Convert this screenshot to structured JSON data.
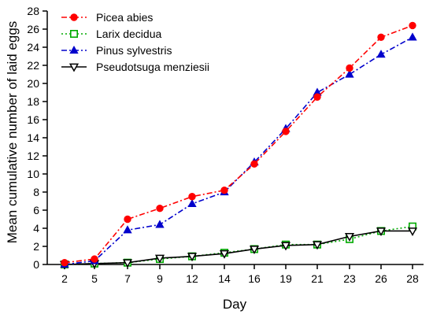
{
  "chart_data": {
    "type": "line",
    "xlabel": "Day",
    "ylabel": "Mean cumulative number of laid eggs",
    "categories": [
      "2",
      "5",
      "7",
      "9",
      "12",
      "14",
      "16",
      "19",
      "21",
      "23",
      "26",
      "28"
    ],
    "ylim": [
      0,
      28
    ],
    "yticks": [
      0,
      2,
      4,
      6,
      8,
      10,
      12,
      14,
      16,
      18,
      20,
      22,
      24,
      26,
      28
    ],
    "legend_position": "top-left",
    "grid": false,
    "series": [
      {
        "name": "Picea abies",
        "color": "#ff0000",
        "dash": "dash-dot",
        "marker": "filled-circle",
        "values": [
          0.2,
          0.6,
          5.0,
          6.2,
          7.5,
          8.2,
          11.1,
          14.7,
          18.5,
          21.7,
          25.1,
          26.4
        ]
      },
      {
        "name": "Larix decidua",
        "color": "#00aa00",
        "dash": "dotted",
        "marker": "open-square",
        "values": [
          0.0,
          0.1,
          0.2,
          0.6,
          0.9,
          1.3,
          1.7,
          2.2,
          2.2,
          2.8,
          3.7,
          4.2
        ]
      },
      {
        "name": "Pinus sylvestris",
        "color": "#0000cc",
        "dash": "dash-dot",
        "marker": "filled-triangle-up",
        "values": [
          0.0,
          0.4,
          3.8,
          4.4,
          6.7,
          8.0,
          11.3,
          15.0,
          19.0,
          21.0,
          23.2,
          25.1
        ]
      },
      {
        "name": "Pseudotsuga menziesii",
        "color": "#000000",
        "dash": "solid",
        "marker": "open-triangle-down",
        "values": [
          0.0,
          0.1,
          0.2,
          0.7,
          0.9,
          1.2,
          1.7,
          2.1,
          2.2,
          3.1,
          3.7,
          3.7
        ]
      }
    ]
  }
}
